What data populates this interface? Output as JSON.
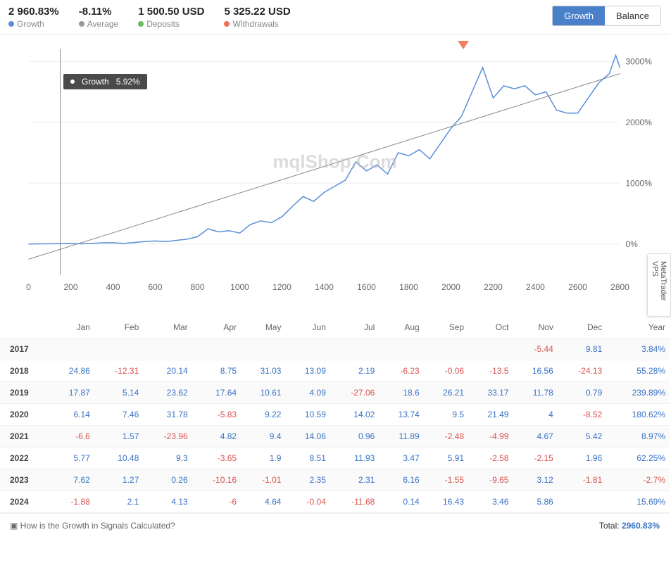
{
  "metrics": {
    "growth": {
      "value": "2 960.83%",
      "label": "Growth",
      "color": "#5a8fd6"
    },
    "average": {
      "value": "-8.11%",
      "label": "Average",
      "color": "#999999"
    },
    "deposits": {
      "value": "1 500.50 USD",
      "label": "Deposits",
      "color": "#6cb96c"
    },
    "withdrawals": {
      "value": "5 325.22 USD",
      "label": "Withdrawals",
      "color": "#e97350"
    }
  },
  "toggle": {
    "growth": "Growth",
    "balance": "Balance",
    "active": "growth"
  },
  "tooltip": {
    "label": "Growth",
    "value": "5.92%"
  },
  "watermark": "mqlShop.Com",
  "side_tab": "MetaTrader VPS",
  "chart": {
    "type": "line",
    "xlim": [
      0,
      2800
    ],
    "xtick_step": 200,
    "ylim": [
      -500,
      3200
    ],
    "yticks": [
      0,
      1000,
      2000,
      3000
    ],
    "ytick_labels": [
      "0%",
      "1000%",
      "2000%",
      "3000%"
    ],
    "line_color": "#5a8fd6",
    "trend_color": "#888888",
    "cursor_x": 150,
    "grid_color": "#eeeeee",
    "background_color": "#ffffff",
    "trend": [
      [
        0,
        -250
      ],
      [
        2800,
        2800
      ]
    ],
    "marker_x": 2150,
    "series": [
      [
        0,
        0
      ],
      [
        50,
        3
      ],
      [
        100,
        5
      ],
      [
        150,
        6
      ],
      [
        200,
        8
      ],
      [
        250,
        5
      ],
      [
        300,
        10
      ],
      [
        350,
        20
      ],
      [
        400,
        22
      ],
      [
        450,
        10
      ],
      [
        500,
        25
      ],
      [
        550,
        40
      ],
      [
        600,
        50
      ],
      [
        650,
        40
      ],
      [
        700,
        60
      ],
      [
        750,
        80
      ],
      [
        800,
        120
      ],
      [
        850,
        250
      ],
      [
        900,
        200
      ],
      [
        950,
        220
      ],
      [
        1000,
        180
      ],
      [
        1050,
        320
      ],
      [
        1100,
        380
      ],
      [
        1150,
        350
      ],
      [
        1200,
        450
      ],
      [
        1250,
        620
      ],
      [
        1300,
        780
      ],
      [
        1350,
        700
      ],
      [
        1400,
        850
      ],
      [
        1450,
        950
      ],
      [
        1500,
        1050
      ],
      [
        1550,
        1350
      ],
      [
        1600,
        1200
      ],
      [
        1650,
        1300
      ],
      [
        1700,
        1150
      ],
      [
        1750,
        1500
      ],
      [
        1800,
        1450
      ],
      [
        1850,
        1550
      ],
      [
        1900,
        1400
      ],
      [
        1950,
        1650
      ],
      [
        2000,
        1900
      ],
      [
        2050,
        2100
      ],
      [
        2100,
        2500
      ],
      [
        2150,
        2900
      ],
      [
        2200,
        2400
      ],
      [
        2250,
        2600
      ],
      [
        2300,
        2550
      ],
      [
        2350,
        2600
      ],
      [
        2400,
        2450
      ],
      [
        2450,
        2500
      ],
      [
        2500,
        2200
      ],
      [
        2550,
        2150
      ],
      [
        2600,
        2150
      ],
      [
        2650,
        2400
      ],
      [
        2700,
        2650
      ],
      [
        2750,
        2800
      ],
      [
        2780,
        3100
      ],
      [
        2800,
        2900
      ]
    ]
  },
  "table": {
    "months": [
      "Jan",
      "Feb",
      "Mar",
      "Apr",
      "May",
      "Jun",
      "Jul",
      "Aug",
      "Sep",
      "Oct",
      "Nov",
      "Dec"
    ],
    "year_col": "Year",
    "rows": [
      {
        "year": "2017",
        "vals": [
          null,
          null,
          null,
          null,
          null,
          null,
          null,
          null,
          null,
          null,
          -5.44,
          9.81
        ],
        "total": "3.84%"
      },
      {
        "year": "2018",
        "vals": [
          24.86,
          -12.31,
          20.14,
          8.75,
          31.03,
          13.09,
          2.19,
          -6.23,
          -0.06,
          -13.5,
          16.56,
          -24.13
        ],
        "total": "55.28%"
      },
      {
        "year": "2019",
        "vals": [
          17.87,
          5.14,
          23.62,
          17.64,
          10.61,
          4.09,
          -27.06,
          18.6,
          26.21,
          33.17,
          11.78,
          0.79
        ],
        "total": "239.89%"
      },
      {
        "year": "2020",
        "vals": [
          6.14,
          7.46,
          31.78,
          -5.83,
          9.22,
          10.59,
          14.02,
          13.74,
          9.5,
          21.49,
          4,
          -8.52
        ],
        "total": "180.62%"
      },
      {
        "year": "2021",
        "vals": [
          -6.6,
          1.57,
          -23.96,
          4.82,
          9.4,
          14.06,
          0.96,
          11.89,
          -2.48,
          -4.99,
          4.67,
          5.42
        ],
        "total": "8.97%"
      },
      {
        "year": "2022",
        "vals": [
          5.77,
          10.48,
          9.3,
          -3.65,
          1.9,
          8.51,
          11.93,
          3.47,
          5.91,
          -2.58,
          -2.15,
          1.96
        ],
        "total": "62.25%"
      },
      {
        "year": "2023",
        "vals": [
          7.62,
          1.27,
          0.26,
          -10.16,
          -1.01,
          2.35,
          2.31,
          6.16,
          -1.55,
          -9.65,
          3.12,
          -1.81
        ],
        "total": "-2.7%"
      },
      {
        "year": "2024",
        "vals": [
          -1.88,
          2.1,
          4.13,
          -6,
          4.64,
          -0.04,
          -11.68,
          0.14,
          16.43,
          3.46,
          5.86,
          null
        ],
        "total": "15.69%"
      }
    ]
  },
  "footer": {
    "link": "How is the Growth in Signals Calculated?",
    "total_label": "Total:",
    "total_value": "2960.83%"
  }
}
